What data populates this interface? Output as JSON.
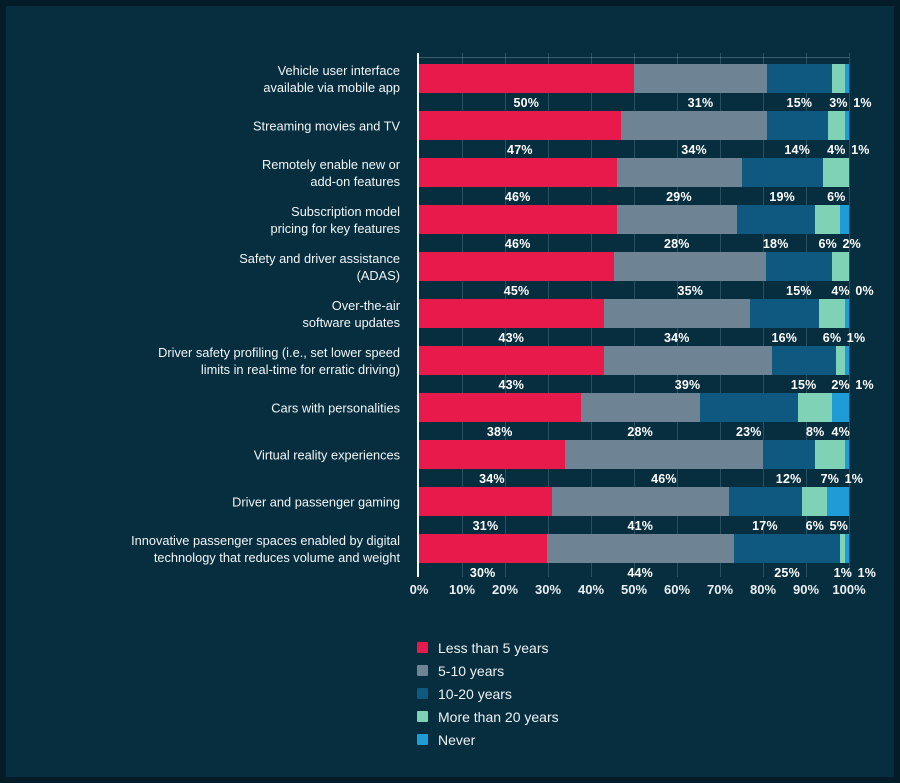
{
  "ui": {
    "colors": {
      "background": "#062e3f",
      "frame_edge": "#041c27",
      "gridline": "#2a4f60",
      "axis_line": "#f5f8f9",
      "label_text": "#ffffff"
    }
  },
  "chart_data": {
    "type": "bar",
    "orientation": "horizontal",
    "stacked": true,
    "title": "",
    "xlabel": "",
    "ylabel": "",
    "xlim": [
      0,
      100
    ],
    "grid": true,
    "legend_position": "bottom-center",
    "x_ticks": [
      "0%",
      "10%",
      "20%",
      "30%",
      "40%",
      "50%",
      "60%",
      "70%",
      "80%",
      "90%",
      "100%"
    ],
    "series": [
      {
        "name": "Less than 5 years",
        "color": "#e8194b"
      },
      {
        "name": "5-10 years",
        "color": "#6e8495"
      },
      {
        "name": "10-20 years",
        "color": "#0f5880"
      },
      {
        "name": "More than 20 years",
        "color": "#7fd2b6"
      },
      {
        "name": "Never",
        "color": "#1f9bd6"
      }
    ],
    "categories": [
      "Vehicle user interface\navailable via mobile app",
      "Streaming movies and TV",
      "Remotely enable new or\nadd-on features",
      "Subscription model\npricing for key features",
      "Safety and driver assistance\n(ADAS)",
      "Over-the-air\nsoftware updates",
      "Driver safety profiling (i.e., set lower speed\nlimits in real-time for erratic driving)",
      "Cars with personalities",
      "Virtual reality experiences",
      "Driver and passenger gaming",
      "Innovative passenger spaces enabled by digital\ntechnology that reduces volume and weight"
    ],
    "rows": [
      {
        "values": [
          50,
          31,
          15,
          3,
          1
        ],
        "labels": [
          "50%",
          "31%",
          "15%",
          "3%",
          "1%"
        ]
      },
      {
        "values": [
          47,
          34,
          14,
          4,
          1
        ],
        "labels": [
          "47%",
          "34%",
          "14%",
          "4%",
          "1%"
        ]
      },
      {
        "values": [
          46,
          29,
          19,
          6,
          0
        ],
        "labels": [
          "46%",
          "29%",
          "19%",
          "6%",
          null
        ]
      },
      {
        "values": [
          46,
          28,
          18,
          6,
          2
        ],
        "labels": [
          "46%",
          "28%",
          "18%",
          "6%",
          "2%"
        ]
      },
      {
        "values": [
          45,
          35,
          15,
          4,
          0
        ],
        "labels": [
          "45%",
          "35%",
          "15%",
          "4%",
          "0%"
        ]
      },
      {
        "values": [
          43,
          34,
          16,
          6,
          1
        ],
        "labels": [
          "43%",
          "34%",
          "16%",
          "6%",
          "1%"
        ]
      },
      {
        "values": [
          43,
          39,
          15,
          2,
          1
        ],
        "labels": [
          "43%",
          "39%",
          "15%",
          "2%",
          "1%"
        ]
      },
      {
        "values": [
          38,
          28,
          23,
          8,
          4
        ],
        "labels": [
          "38%",
          "28%",
          "23%",
          "8%",
          "4%"
        ]
      },
      {
        "values": [
          34,
          46,
          12,
          7,
          1
        ],
        "labels": [
          "34%",
          "46%",
          "12%",
          "7%",
          "1%"
        ]
      },
      {
        "values": [
          31,
          41,
          17,
          6,
          5
        ],
        "labels": [
          "31%",
          "41%",
          "17%",
          "6%",
          "5%"
        ]
      },
      {
        "values": [
          30,
          44,
          25,
          1,
          1
        ],
        "labels": [
          "30%",
          "44%",
          "25%",
          "1%",
          "1%"
        ]
      }
    ]
  }
}
